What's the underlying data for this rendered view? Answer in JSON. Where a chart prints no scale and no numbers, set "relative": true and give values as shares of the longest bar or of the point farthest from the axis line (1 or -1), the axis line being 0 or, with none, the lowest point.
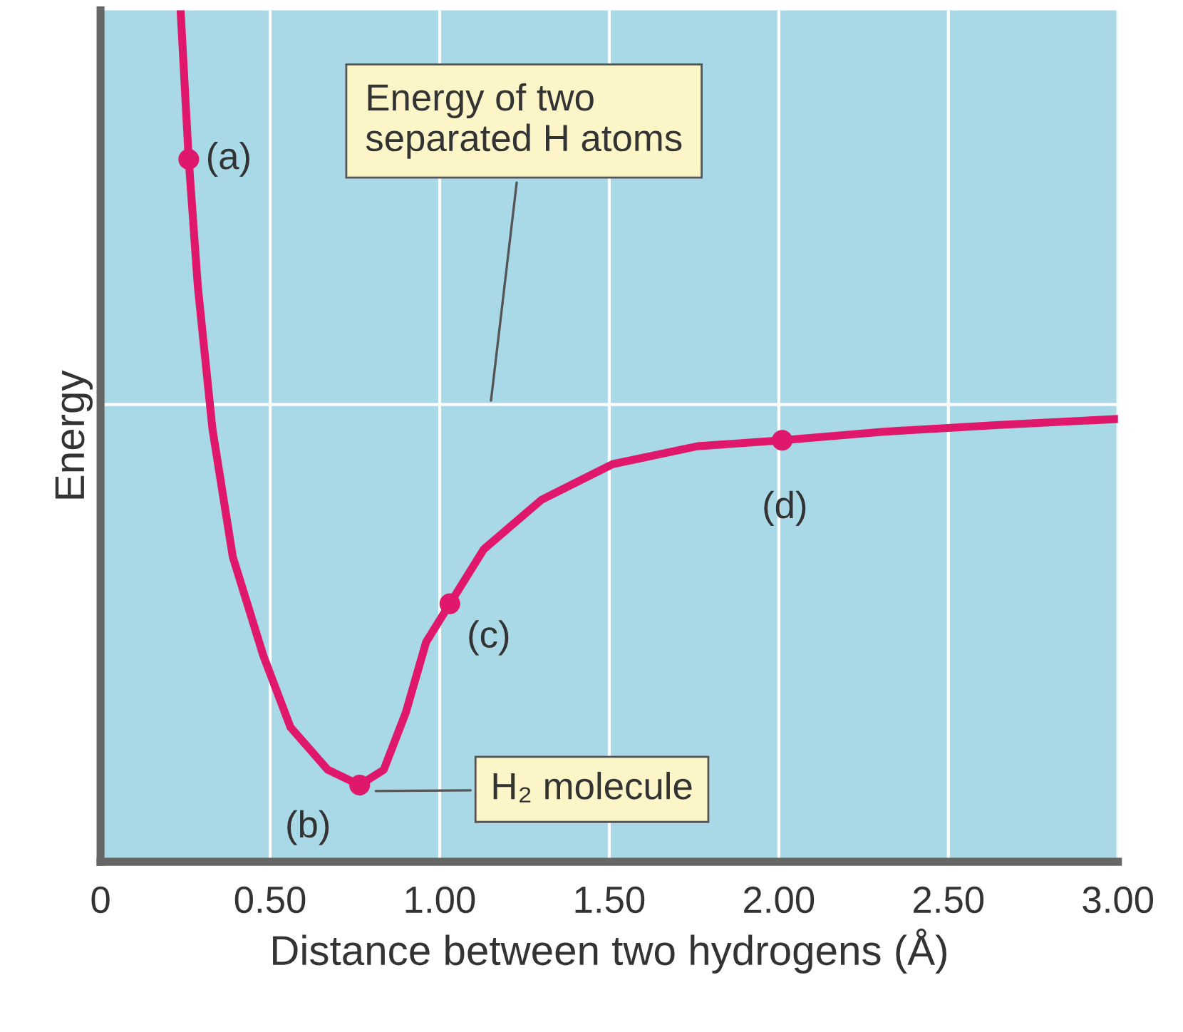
{
  "chart_data": {
    "type": "line",
    "relative": true,
    "xlabel": "Distance between two hydrogens (Å)",
    "ylabel": "Energy",
    "xlim": [
      0,
      3
    ],
    "xticks": [
      0,
      {
        "value": 0.5,
        "label": "0.50"
      },
      {
        "value": 1,
        "label": "1.00"
      },
      {
        "value": 1.5,
        "label": "1.50"
      },
      {
        "value": 2,
        "label": "2.00"
      },
      {
        "value": 2.5,
        "label": "2.50"
      },
      {
        "value": 3,
        "label": "3.00"
      }
    ],
    "tick_labels": "x",
    "grid": "x",
    "marker": "none",
    "line_style": "solid",
    "series": [
      {
        "color": "#e0186c",
        "x": [
          0.236,
          0.26,
          0.287,
          0.33,
          0.39,
          0.48,
          0.56,
          0.67,
          0.764,
          0.835,
          0.9,
          0.96,
          1.03,
          1.13,
          1.3,
          1.51,
          1.76,
          2.01,
          2.31,
          2.65,
          3.0
        ],
        "values": [
          1.0,
          0.825,
          0.675,
          0.508,
          0.358,
          0.242,
          0.158,
          0.108,
          0.09,
          0.108,
          0.175,
          0.258,
          0.303,
          0.367,
          0.425,
          0.467,
          0.488,
          0.495,
          0.505,
          0.513,
          0.52
        ]
      },
      {
        "type": "scatter",
        "marker": "circle",
        "color": "#e0186c",
        "x": [
          0.26,
          0.764,
          1.03,
          2.01
        ],
        "values": [
          0.825,
          0.09,
          0.303,
          0.495
        ]
      }
    ],
    "ref_lines": [
      {
        "axis": "y",
        "value": 0.537,
        "color": "#ffffff"
      }
    ],
    "annotations": [
      {
        "text": "(a)",
        "x": 0.26,
        "y": 0.825
      },
      {
        "text": "(b)",
        "x": 0.764,
        "y": 0.09
      },
      {
        "text": "(c)",
        "x": 1.03,
        "y": 0.303
      },
      {
        "text": "(d)",
        "x": 2.01,
        "y": 0.495
      },
      {
        "text": "Energy of two\nseparated H atoms",
        "x": 1.15,
        "y": 0.537
      },
      {
        "text": "H₂ molecule",
        "x": 0.8,
        "y": 0.083
      }
    ]
  }
}
